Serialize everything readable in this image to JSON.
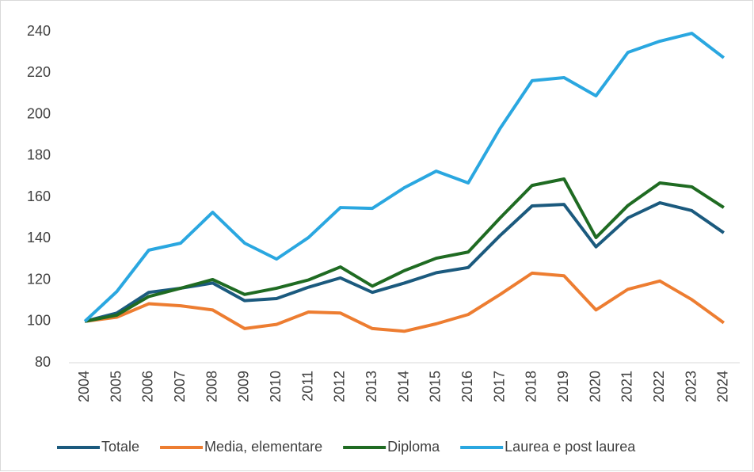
{
  "chart_data": {
    "type": "line",
    "categories": [
      "2004",
      "2005",
      "2006",
      "2007",
      "2008",
      "2009",
      "2010",
      "2011",
      "2012",
      "2013",
      "2014",
      "2015",
      "2016",
      "2017",
      "2018",
      "2019",
      "2020",
      "2021",
      "2022",
      "2023",
      "2024"
    ],
    "series": [
      {
        "name": "Totale",
        "color": "#1b5a7e",
        "values": [
          100,
          104,
          114,
          116,
          118.5,
          110,
          111,
          116.5,
          121,
          114,
          118.5,
          123.5,
          126,
          141.5,
          155.8,
          156.5,
          136,
          150,
          157.3,
          153.5,
          142.8
        ]
      },
      {
        "name": "Media, elementare",
        "color": "#ed7d31",
        "values": [
          100,
          102,
          108.5,
          107.5,
          105.5,
          96.5,
          98.5,
          104.5,
          104,
          96.5,
          95.2,
          98.8,
          103.3,
          113,
          123.3,
          122,
          105.5,
          115.5,
          119.5,
          110.5,
          99.3
        ]
      },
      {
        "name": "Diploma",
        "color": "#1f6b22",
        "values": [
          100,
          103,
          112,
          116,
          120.2,
          113,
          116,
          120,
          126.3,
          117,
          124.5,
          130.5,
          133.5,
          150,
          165.7,
          168.8,
          140.5,
          156,
          166.9,
          165,
          155
        ]
      },
      {
        "name": "Laurea e post laurea",
        "color": "#2aa7e0",
        "values": [
          100,
          114.4,
          134.4,
          137.8,
          152.7,
          137.8,
          130.1,
          140.5,
          155,
          154.6,
          164.6,
          172.6,
          166.9,
          193.3,
          216.3,
          217.8,
          209,
          230,
          235.4,
          239.2,
          227.4
        ]
      }
    ],
    "ylim": [
      80,
      240
    ],
    "yticks": [
      80,
      100,
      120,
      140,
      160,
      180,
      200,
      220,
      240
    ],
    "grid": false,
    "legend": "bottom"
  }
}
